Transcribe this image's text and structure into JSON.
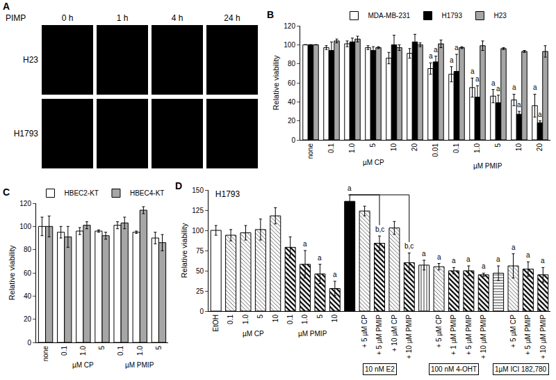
{
  "chart_data": [
    {
      "type": "image_grid",
      "title": "PIMP",
      "columns": [
        "0 h",
        "1 h",
        "4 h",
        "24 h"
      ],
      "rows": [
        "H23",
        "H1793"
      ],
      "annotations": [
        {
          "text": "A"
        }
      ]
    },
    {
      "type": "bar",
      "categories": [
        "none",
        "0.1",
        "1.0",
        "5",
        "10",
        "20",
        "0.01",
        "0.1",
        "1.0",
        "5",
        "10",
        "20"
      ],
      "ylabel": "Relative viability",
      "ylim": [
        0,
        120
      ],
      "yticks": [
        0,
        20,
        40,
        60,
        80,
        100,
        120
      ],
      "grid": false,
      "legend": "top",
      "stacked": false,
      "groups": [
        {
          "label": "µM CP",
          "from": 1,
          "to": 5
        },
        {
          "label": "µM PMIP",
          "from": 6,
          "to": 11
        }
      ],
      "series": [
        {
          "name": "MDA-MB-231",
          "color": "#ffffff",
          "marker": "solid",
          "values": [
            100,
            97,
            101,
            97,
            86,
            91,
            75,
            69,
            55,
            46,
            42,
            36
          ],
          "errors": [
            0,
            2,
            3,
            2,
            6,
            5,
            6,
            8,
            10,
            7,
            6,
            12
          ]
        },
        {
          "name": "H1793",
          "color": "#000000",
          "marker": "solid",
          "values": [
            100,
            94,
            103,
            94,
            100,
            103,
            82,
            72,
            45,
            39,
            27,
            18
          ],
          "errors": [
            0,
            9,
            4,
            4,
            10,
            8,
            6,
            18,
            12,
            8,
            3,
            2
          ]
        },
        {
          "name": "H23",
          "color": "#a6a6a6",
          "marker": "solid",
          "values": [
            100,
            104,
            106,
            97,
            97,
            100,
            101,
            97,
            99,
            96,
            93,
            93
          ],
          "errors": [
            0,
            2,
            3,
            1,
            3,
            2,
            4,
            1,
            5,
            1,
            1,
            6
          ]
        }
      ],
      "annotations": [
        {
          "text": "B"
        },
        {
          "text": "a",
          "category": 6,
          "series": "MDA-MB-231"
        },
        {
          "text": "a",
          "category": 6,
          "series": "H1793"
        },
        {
          "text": "a",
          "category": 7,
          "series": "MDA-MB-231"
        },
        {
          "text": "a",
          "category": 7,
          "series": "H1793"
        },
        {
          "text": "a",
          "category": 8,
          "series": "MDA-MB-231"
        },
        {
          "text": "a",
          "category": 8,
          "series": "H1793"
        },
        {
          "text": "a",
          "category": 9,
          "series": "MDA-MB-231"
        },
        {
          "text": "a",
          "category": 9,
          "series": "H1793"
        },
        {
          "text": "a",
          "category": 10,
          "series": "MDA-MB-231"
        },
        {
          "text": "a",
          "category": 10,
          "series": "H1793"
        },
        {
          "text": "a",
          "category": 11,
          "series": "MDA-MB-231"
        },
        {
          "text": "a",
          "category": 11,
          "series": "H1793"
        }
      ]
    },
    {
      "type": "bar",
      "categories": [
        "none",
        "0.1",
        "1.0",
        "5",
        "0.1",
        "1.0",
        "5"
      ],
      "ylabel": "Relative viability",
      "ylim": [
        0,
        120
      ],
      "yticks": [
        0,
        20,
        40,
        60,
        80,
        100,
        120
      ],
      "grid": false,
      "legend": "top",
      "stacked": false,
      "groups": [
        {
          "label": "µM CP",
          "from": 1,
          "to": 3
        },
        {
          "label": "µM PMIP",
          "from": 4,
          "to": 6
        }
      ],
      "series": [
        {
          "name": "HBEC2-KT",
          "color": "#ffffff",
          "marker": "solid",
          "values": [
            100,
            95,
            96,
            96,
            101,
            95,
            90
          ],
          "errors": [
            8,
            5,
            3,
            1,
            3,
            1,
            5
          ]
        },
        {
          "name": "HBEC4-KT",
          "color": "#a6a6a6",
          "marker": "solid",
          "values": [
            100,
            91,
            101,
            92,
            103,
            114,
            86
          ],
          "errors": [
            9,
            9,
            3,
            3,
            5,
            3,
            7
          ]
        }
      ],
      "annotations": [
        {
          "text": "C"
        }
      ]
    },
    {
      "type": "bar",
      "title": "H1793",
      "categories": [
        "EtOH",
        "0.1",
        "1.0",
        "5",
        "10",
        "0.1",
        "1.0",
        "5",
        "10",
        null,
        "+ 5 µM CP",
        "+ 5 µM PMIP",
        "+ 10 µM CP",
        "+ 10 µM PMIP",
        null,
        "+ 5 µM CP",
        "+ 1 µM PMIP",
        "+ 5 µM PMIP",
        "+ 10 µM PMIP",
        null,
        "+ 5 µM CP",
        "+ 5 µM PMIP",
        "+ 10 µM PMIP"
      ],
      "ylabel": "Relative viability",
      "ylim": [
        0,
        150
      ],
      "yticks": [
        0,
        25,
        50,
        75,
        100,
        125,
        150
      ],
      "grid": false,
      "stacked": false,
      "groups": [
        {
          "label": "µM CP",
          "from": 1,
          "to": 4
        },
        {
          "label": "µM PMIP",
          "from": 5,
          "to": 8
        },
        {
          "label": "10 nM E2",
          "from": 9,
          "to": 13
        },
        {
          "label": "100 nM 4-OHT",
          "from": 14,
          "to": 18
        },
        {
          "label": "1µM ICI 182,780",
          "from": 19,
          "to": 22
        }
      ],
      "series": [
        {
          "color": "#ffffff",
          "marker": "solid",
          "values": [
            100,
            null,
            null,
            null,
            null,
            null,
            null,
            null,
            null,
            null,
            null,
            null,
            null,
            null,
            null,
            null,
            null,
            null,
            null,
            null,
            null,
            null,
            null
          ],
          "errors": [
            6,
            null,
            null,
            null,
            null,
            null,
            null,
            null,
            null,
            null,
            null,
            null,
            null,
            null,
            null,
            null,
            null,
            null,
            null,
            null,
            null,
            null,
            null
          ]
        },
        {
          "color": "#ffffff",
          "marker": "light_hatch",
          "values": [
            null,
            94,
            97,
            101,
            118,
            null,
            null,
            null,
            null,
            null,
            124,
            null,
            103,
            null,
            null,
            55,
            null,
            null,
            null,
            null,
            56,
            null,
            null
          ],
          "errors": [
            null,
            7,
            9,
            13,
            10,
            null,
            null,
            null,
            null,
            null,
            6,
            null,
            8,
            null,
            null,
            4,
            null,
            null,
            null,
            null,
            15,
            null,
            null
          ]
        },
        {
          "color": "#ffffff",
          "marker": "hatch",
          "values": [
            null,
            null,
            null,
            null,
            null,
            79,
            58,
            46,
            28,
            null,
            null,
            84,
            null,
            60,
            null,
            null,
            50,
            50,
            45,
            null,
            null,
            52,
            45
          ],
          "errors": [
            null,
            null,
            null,
            null,
            null,
            13,
            17,
            12,
            9,
            null,
            null,
            9,
            null,
            12,
            null,
            null,
            4,
            6,
            2,
            null,
            null,
            9,
            9
          ]
        },
        {
          "color": "#000000",
          "marker": "solid",
          "values": [
            null,
            null,
            null,
            null,
            null,
            null,
            null,
            null,
            null,
            136,
            null,
            null,
            null,
            null,
            null,
            null,
            null,
            null,
            null,
            null,
            null,
            null,
            null
          ],
          "errors": [
            null,
            null,
            null,
            null,
            null,
            null,
            null,
            null,
            null,
            8,
            null,
            null,
            null,
            null,
            null,
            null,
            null,
            null,
            null,
            null,
            null,
            null,
            null
          ]
        },
        {
          "color": "#ffffff",
          "marker": "vertical_lines",
          "values": [
            null,
            null,
            null,
            null,
            null,
            null,
            null,
            null,
            null,
            null,
            null,
            null,
            null,
            null,
            57,
            null,
            null,
            null,
            null,
            null,
            null,
            null,
            null
          ],
          "errors": [
            null,
            null,
            null,
            null,
            null,
            null,
            null,
            null,
            null,
            null,
            null,
            null,
            null,
            null,
            6,
            null,
            null,
            null,
            null,
            null,
            null,
            null,
            null
          ]
        },
        {
          "color": "#ffffff",
          "marker": "horizontal_lines",
          "values": [
            null,
            null,
            null,
            null,
            null,
            null,
            null,
            null,
            null,
            null,
            null,
            null,
            null,
            null,
            null,
            null,
            null,
            null,
            null,
            47,
            null,
            null,
            null
          ],
          "errors": [
            null,
            null,
            null,
            null,
            null,
            null,
            null,
            null,
            null,
            null,
            null,
            null,
            null,
            null,
            null,
            null,
            null,
            null,
            null,
            9,
            null,
            null,
            null
          ]
        }
      ],
      "brackets": [
        {
          "from": 9,
          "to": 11
        },
        {
          "from": 9,
          "to": 13
        }
      ],
      "annotations": [
        {
          "text": "D"
        },
        {
          "text": "a",
          "category": 6
        },
        {
          "text": "a",
          "category": 7
        },
        {
          "text": "a",
          "category": 8
        },
        {
          "text": "a",
          "category": 9
        },
        {
          "text": "b,c",
          "category": 11
        },
        {
          "text": "b,c",
          "category": 13
        },
        {
          "text": "a",
          "category": 14
        },
        {
          "text": "a",
          "category": 15
        },
        {
          "text": "a",
          "category": 16
        },
        {
          "text": "a",
          "category": 17
        },
        {
          "text": "a",
          "category": 18
        },
        {
          "text": "a",
          "category": 19
        },
        {
          "text": "a",
          "category": 20
        },
        {
          "text": "a",
          "category": 21
        },
        {
          "text": "a",
          "category": 22
        }
      ]
    }
  ]
}
